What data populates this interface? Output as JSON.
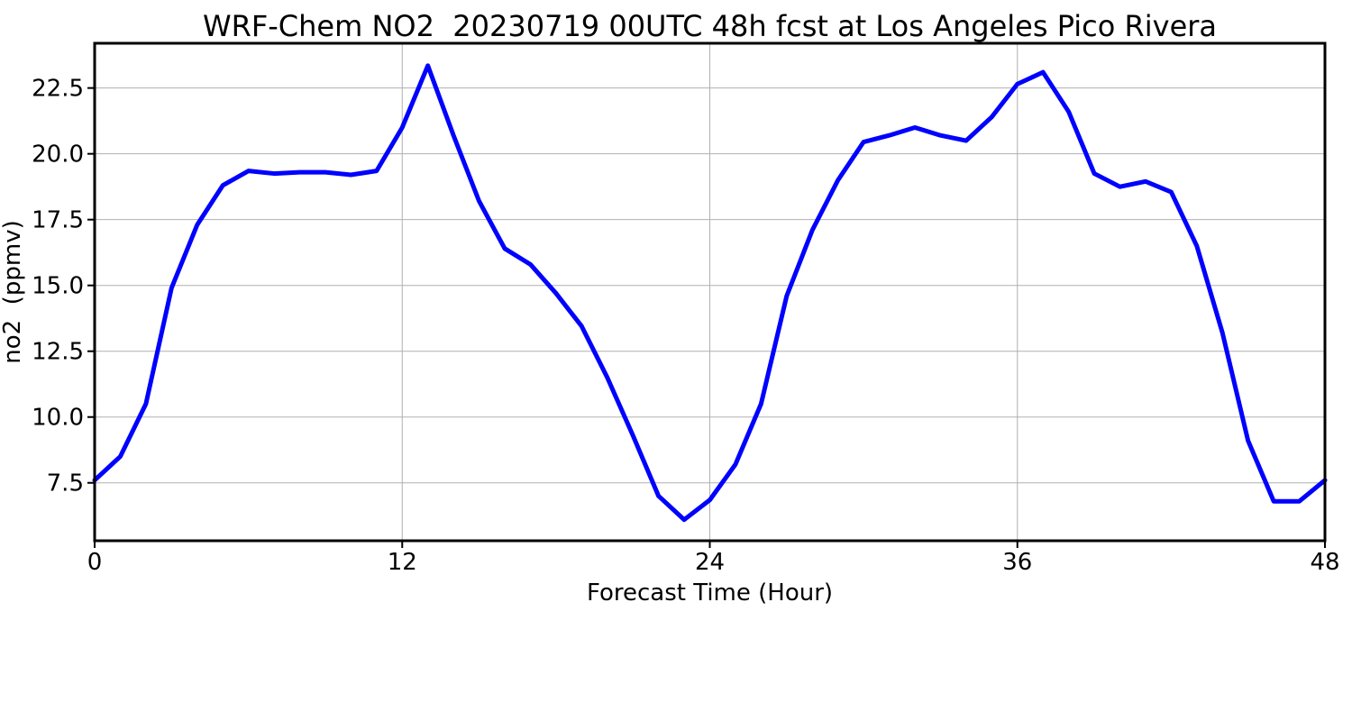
{
  "chart_data": {
    "type": "line",
    "title": "WRF-Chem NO2  20230719 00UTC 48h fcst at Los Angeles Pico Rivera",
    "xlabel": "Forecast Time (Hour)",
    "ylabel": "no2  (ppmv)",
    "xlim": [
      0,
      48
    ],
    "ylim": [
      5.3,
      24.2
    ],
    "xticks": [
      0,
      12,
      24,
      36,
      48
    ],
    "xtick_labels": [
      "0",
      "12",
      "24",
      "36",
      "48"
    ],
    "yticks": [
      7.5,
      10.0,
      12.5,
      15.0,
      17.5,
      20.0,
      22.5
    ],
    "ytick_labels": [
      "7.5",
      "10.0",
      "12.5",
      "15.0",
      "17.5",
      "20.0",
      "22.5"
    ],
    "grid": true,
    "series": [
      {
        "color": "#0000ff",
        "x": [
          0,
          1,
          2,
          3,
          4,
          5,
          6,
          7,
          8,
          9,
          10,
          11,
          12,
          13,
          14,
          15,
          16,
          17,
          18,
          19,
          20,
          21,
          22,
          23,
          24,
          25,
          26,
          27,
          28,
          29,
          30,
          31,
          32,
          33,
          34,
          35,
          36,
          37,
          38,
          39,
          40,
          41,
          42,
          43,
          44,
          45,
          46,
          47,
          48
        ],
        "values": [
          7.6,
          8.5,
          10.5,
          14.9,
          17.3,
          18.8,
          19.35,
          19.25,
          19.3,
          19.3,
          19.2,
          19.35,
          21.0,
          23.35,
          20.7,
          18.2,
          16.4,
          15.8,
          14.7,
          13.45,
          11.5,
          9.3,
          7.0,
          6.1,
          6.85,
          8.2,
          10.5,
          14.6,
          17.1,
          19.0,
          20.45,
          20.7,
          21.0,
          20.7,
          20.5,
          21.4,
          22.65,
          23.1,
          21.6,
          19.25,
          18.75,
          18.95,
          18.55,
          16.5,
          13.2,
          9.1,
          6.8,
          6.8,
          7.6
        ]
      }
    ]
  }
}
